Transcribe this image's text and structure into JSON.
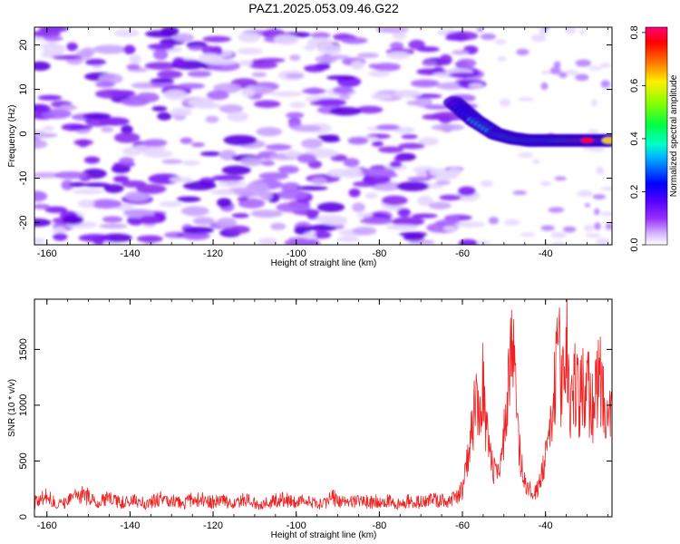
{
  "title": "PAZ1.2025.053.09.46.G22",
  "chart_data": [
    {
      "type": "heatmap",
      "xlabel": "Height of straight line (km)",
      "ylabel": "Frequency (Hz)",
      "xlim": [
        -163,
        -24
      ],
      "ylim": [
        -25,
        24
      ],
      "xticks": [
        -160,
        -140,
        -120,
        -100,
        -80,
        -60,
        -40
      ],
      "yticks": [
        -20,
        -10,
        0,
        10,
        20
      ],
      "colorbar": {
        "label": "Normalized spectral amplitude",
        "range": [
          0.0,
          0.82
        ],
        "ticks": [
          0.0,
          0.2,
          0.4,
          0.6,
          0.8
        ],
        "colors": [
          "#ffffff",
          "#d8b8ff",
          "#9b30ff",
          "#6600ff",
          "#0000ff",
          "#00e5ff",
          "#00ff66",
          "#66ff00",
          "#ffff00",
          "#ff8800",
          "#ff0000",
          "#ff00aa"
        ]
      },
      "features": [
        {
          "description": "signal trace",
          "x": [
            -62,
            -57,
            -52,
            -48,
            -44,
            -40,
            -36,
            -32,
            -28,
            -24
          ],
          "y": [
            7,
            3,
            0,
            -1,
            -1.5,
            -1.5,
            -1.5,
            -1.5,
            -1.5,
            -1.5
          ],
          "amplitude": [
            0.2,
            0.35,
            0.4,
            0.45,
            0.4,
            0.35,
            0.5,
            0.7,
            0.82,
            0.7
          ]
        }
      ]
    },
    {
      "type": "line",
      "xlabel": "Height of straight line (km)",
      "ylabel": "SNR (10 * v/v)",
      "xlim": [
        -163,
        -24
      ],
      "ylim": [
        0,
        1950
      ],
      "xticks": [
        -160,
        -140,
        -120,
        -100,
        -80,
        -60,
        -40
      ],
      "yticks": [
        0,
        500,
        1000,
        1500
      ],
      "series": [
        {
          "color": "#ee2222",
          "x": [
            -163,
            -160,
            -157,
            -154,
            -151,
            -148,
            -145,
            -142,
            -139,
            -136,
            -133,
            -130,
            -127,
            -124,
            -121,
            -118,
            -115,
            -112,
            -109,
            -106,
            -103,
            -100,
            -97,
            -94,
            -91,
            -88,
            -85,
            -82,
            -79,
            -76,
            -73,
            -70,
            -67,
            -64,
            -61,
            -60,
            -59,
            -58,
            -57,
            -56,
            -55,
            -54,
            -53,
            -52,
            -51,
            -50,
            -49,
            -48,
            -47,
            -46,
            -45,
            -44,
            -43,
            -42,
            -41,
            -40,
            -39,
            -38,
            -37,
            -36,
            -35,
            -34,
            -33,
            -32,
            -31,
            -30,
            -29,
            -28,
            -27,
            -26,
            -25,
            -24
          ],
          "y": [
            130,
            180,
            110,
            160,
            200,
            120,
            170,
            130,
            150,
            110,
            160,
            140,
            120,
            170,
            130,
            150,
            120,
            160,
            110,
            140,
            160,
            130,
            150,
            110,
            170,
            120,
            140,
            130,
            160,
            110,
            140,
            130,
            150,
            140,
            180,
            250,
            450,
            700,
            1000,
            900,
            1200,
            700,
            500,
            350,
            450,
            700,
            1100,
            1650,
            900,
            500,
            350,
            250,
            200,
            250,
            400,
            500,
            700,
            1100,
            1550,
            1100,
            1800,
            900,
            1200,
            1050,
            1150,
            1300,
            900,
            1100,
            1250,
            1000,
            950,
            1050
          ]
        }
      ]
    }
  ]
}
